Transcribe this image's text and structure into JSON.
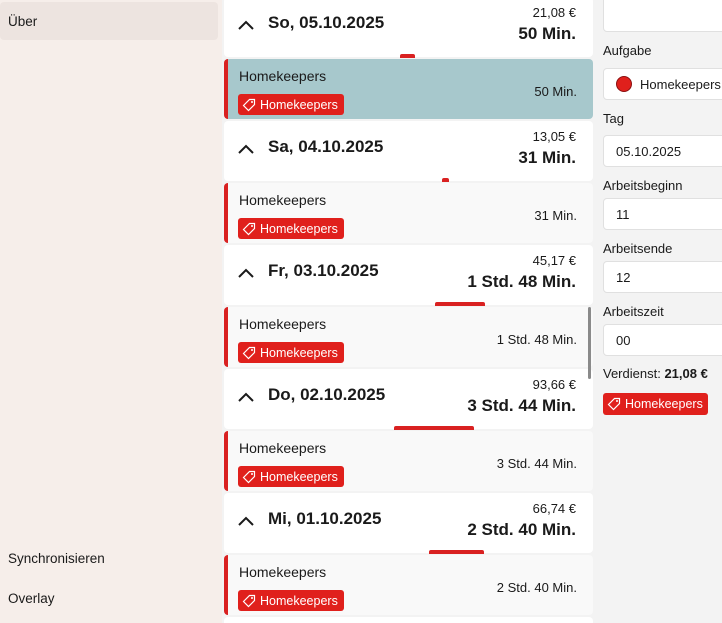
{
  "nav": {
    "top_item": "Über",
    "bottom_items": [
      "Synchronisieren",
      "Overlay"
    ]
  },
  "days": [
    {
      "date": "So, 05.10.2025",
      "money": "21,08 €",
      "duration": "50 Min.",
      "entry": {
        "name": "Homekeepers",
        "tag": "Homekeepers",
        "duration": "50 Min."
      }
    },
    {
      "date": "Sa, 04.10.2025",
      "money": "13,05 €",
      "duration": "31 Min.",
      "entry": {
        "name": "Homekeepers",
        "tag": "Homekeepers",
        "duration": "31 Min."
      }
    },
    {
      "date": "Fr, 03.10.2025",
      "money": "45,17 €",
      "duration": "1 Std. 48 Min.",
      "entry": {
        "name": "Homekeepers",
        "tag": "Homekeepers",
        "duration": "1 Std. 48 Min."
      }
    },
    {
      "date": "Do, 02.10.2025",
      "money": "93,66 €",
      "duration": "3 Std. 44 Min.",
      "entry": {
        "name": "Homekeepers",
        "tag": "Homekeepers",
        "duration": "3 Std. 44 Min."
      }
    },
    {
      "date": "Mi, 01.10.2025",
      "money": "66,74 €",
      "duration": "2 Std. 40 Min.",
      "entry": {
        "name": "Homekeepers",
        "tag": "Homekeepers",
        "duration": "2 Std. 40 Min."
      }
    }
  ],
  "detail": {
    "aufgabe_label": "Aufgabe",
    "aufgabe_value": "Homekeepers",
    "tag_label": "Tag",
    "tag_value": "05.10.2025",
    "beginn_label": "Arbeitsbeginn",
    "beginn_value": "11",
    "ende_label": "Arbeitsende",
    "ende_value": "12",
    "zeit_label": "Arbeitszeit",
    "zeit_value": "00",
    "verdienst_label": "Verdienst:",
    "verdienst_value": "21,08 €",
    "tag_chip": "Homekeepers"
  },
  "colors": {
    "accent": "#e0201c",
    "selected_entry": "#a7c8cc",
    "nav_bg": "#f6eeea"
  },
  "icons": {
    "collapse": "chevron-up-icon",
    "tag": "tag-icon",
    "color_dot": "color-dot-icon"
  }
}
